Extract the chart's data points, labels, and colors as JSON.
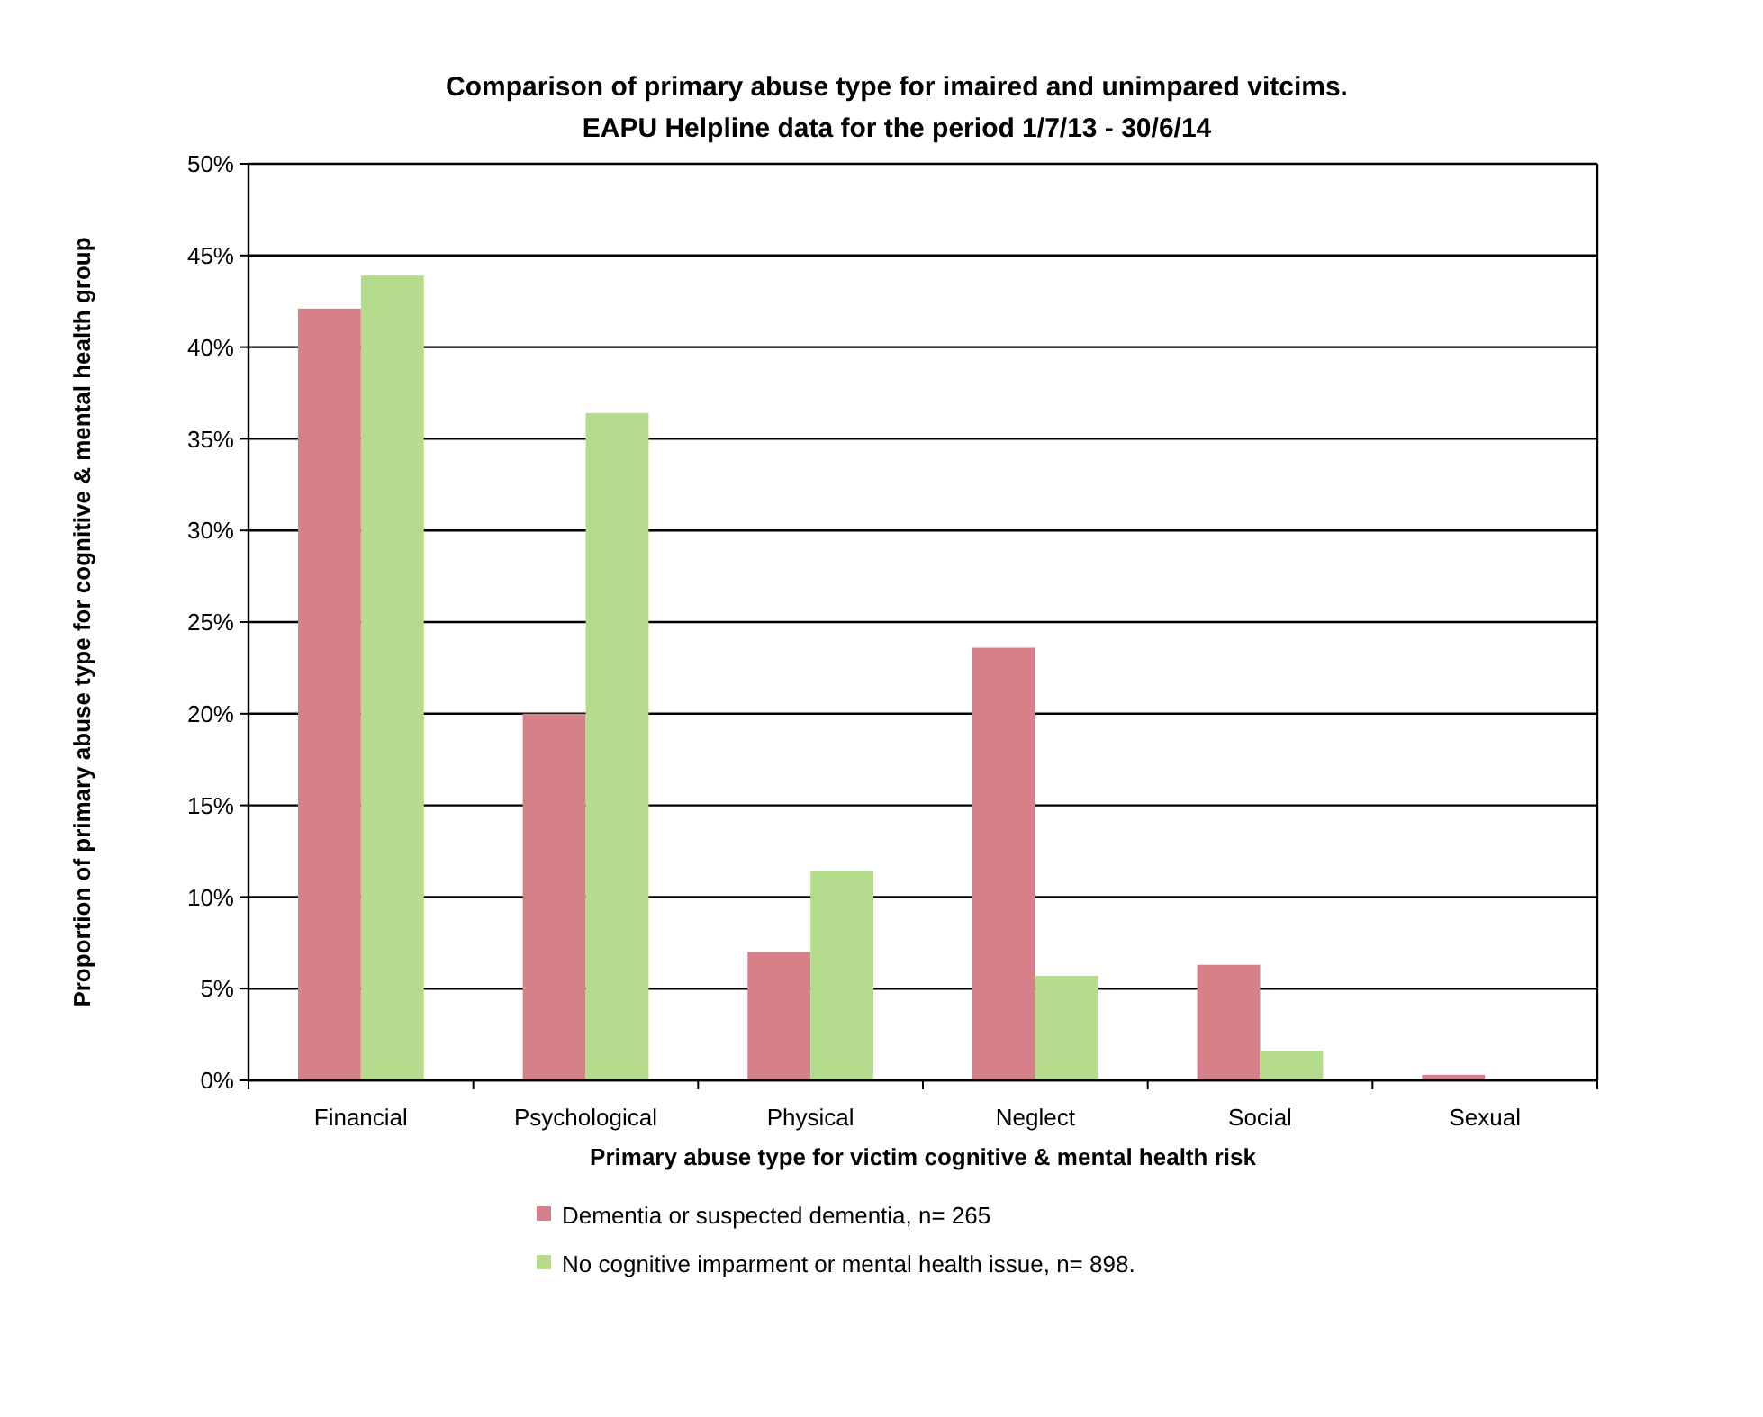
{
  "chart_data": {
    "type": "bar",
    "title": "Comparison of primary abuse type for imaired and unimpared vitcims.",
    "subtitle": "EAPU Helpline data for the period 1/7/13 - 30/6/14",
    "xlabel": "Primary abuse type for victim  cognitive & mental health risk",
    "ylabel": "Proportion of primary abuse type for cognitive & mental health group",
    "categories": [
      "Financial",
      "Psychological",
      "Physical",
      "Neglect",
      "Social",
      "Sexual"
    ],
    "series": [
      {
        "name": "Dementia or suspected dementia, n= 265",
        "color": "#d6808a",
        "values": [
          42.1,
          20.0,
          7.0,
          23.6,
          6.3,
          0.3
        ]
      },
      {
        "name": "No cognitive imparment or mental health issue, n= 898.",
        "color": "#b5dc8c",
        "values": [
          43.9,
          36.4,
          11.4,
          5.7,
          1.6,
          0
        ]
      }
    ],
    "ylim": [
      0,
      50
    ],
    "yticks": [
      {
        "value": 0,
        "label": "0%"
      },
      {
        "value": 5,
        "label": "5%"
      },
      {
        "value": 10,
        "label": "10%"
      },
      {
        "value": 15,
        "label": "15%"
      },
      {
        "value": 20,
        "label": "20%"
      },
      {
        "value": 25,
        "label": "25%"
      },
      {
        "value": 30,
        "label": "30%"
      },
      {
        "value": 35,
        "label": "35%"
      },
      {
        "value": 40,
        "label": "40%"
      },
      {
        "value": 45,
        "label": "45%"
      },
      {
        "value": 50,
        "label": "50%"
      }
    ],
    "grid": "y",
    "legend": "bottom"
  }
}
